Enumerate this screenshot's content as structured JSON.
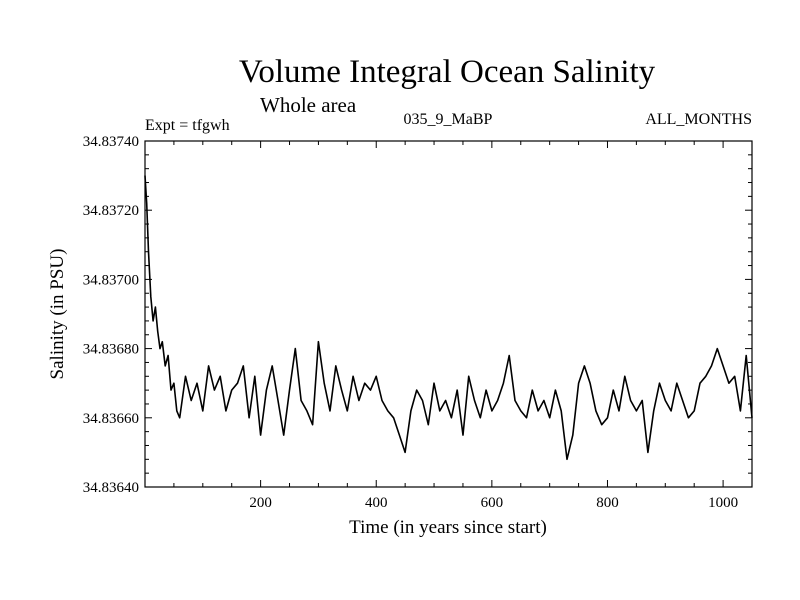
{
  "chart_data": {
    "type": "line",
    "title": "Volume Integral Ocean Salinity",
    "subtitle": "Whole area",
    "experiment": "Expt = tfgwh",
    "run_label": "035_9_MaBP",
    "period_label": "ALL_MONTHS",
    "xlabel": "Time (in years since start)",
    "ylabel": "Salinity (in PSU)",
    "xlim": [
      0,
      1050
    ],
    "ylim": [
      34.8364,
      34.8374
    ],
    "x_ticks": [
      200,
      400,
      600,
      800,
      1000
    ],
    "x_tick_labels": [
      "200",
      "400",
      "600",
      "800",
      "1000"
    ],
    "y_ticks": [
      34.8364,
      34.8366,
      34.8368,
      34.837,
      34.8372,
      34.8374
    ],
    "y_tick_labels": [
      "34.83640",
      "34.83660",
      "34.83680",
      "34.83700",
      "34.83720",
      "34.83740"
    ],
    "series": [
      {
        "name": "salinity",
        "color": "#000000",
        "x": [
          0,
          3,
          6,
          10,
          14,
          18,
          22,
          26,
          30,
          35,
          40,
          45,
          50,
          55,
          60,
          70,
          80,
          90,
          100,
          110,
          120,
          130,
          140,
          150,
          160,
          170,
          180,
          190,
          200,
          210,
          220,
          230,
          240,
          250,
          260,
          270,
          280,
          290,
          300,
          310,
          320,
          330,
          340,
          350,
          360,
          370,
          380,
          390,
          400,
          410,
          420,
          430,
          440,
          450,
          460,
          470,
          480,
          490,
          500,
          510,
          520,
          530,
          540,
          550,
          560,
          570,
          580,
          590,
          600,
          610,
          620,
          630,
          640,
          650,
          660,
          670,
          680,
          690,
          700,
          710,
          720,
          730,
          740,
          750,
          760,
          770,
          780,
          790,
          800,
          810,
          820,
          830,
          840,
          850,
          860,
          870,
          880,
          890,
          900,
          910,
          920,
          930,
          940,
          950,
          960,
          970,
          980,
          990,
          1000,
          1010,
          1020,
          1030,
          1040,
          1050
        ],
        "values": [
          34.8373,
          34.83722,
          34.83708,
          34.83695,
          34.83688,
          34.83692,
          34.83685,
          34.8368,
          34.83682,
          34.83675,
          34.83678,
          34.83668,
          34.8367,
          34.83662,
          34.8366,
          34.83672,
          34.83665,
          34.8367,
          34.83662,
          34.83675,
          34.83668,
          34.83672,
          34.83662,
          34.83668,
          34.8367,
          34.83675,
          34.8366,
          34.83672,
          34.83655,
          34.83668,
          34.83675,
          34.83665,
          34.83655,
          34.83668,
          34.8368,
          34.83665,
          34.83662,
          34.83658,
          34.83682,
          34.8367,
          34.83662,
          34.83675,
          34.83668,
          34.83662,
          34.83672,
          34.83665,
          34.8367,
          34.83668,
          34.83672,
          34.83665,
          34.83662,
          34.8366,
          34.83655,
          34.8365,
          34.83662,
          34.83668,
          34.83665,
          34.83658,
          34.8367,
          34.83662,
          34.83665,
          34.8366,
          34.83668,
          34.83655,
          34.83672,
          34.83665,
          34.8366,
          34.83668,
          34.83662,
          34.83665,
          34.8367,
          34.83678,
          34.83665,
          34.83662,
          34.8366,
          34.83668,
          34.83662,
          34.83665,
          34.8366,
          34.83668,
          34.83662,
          34.83648,
          34.83655,
          34.8367,
          34.83675,
          34.8367,
          34.83662,
          34.83658,
          34.8366,
          34.83668,
          34.83662,
          34.83672,
          34.83665,
          34.83662,
          34.83665,
          34.8365,
          34.83662,
          34.8367,
          34.83665,
          34.83662,
          34.8367,
          34.83665,
          34.8366,
          34.83662,
          34.8367,
          34.83672,
          34.83675,
          34.8368,
          34.83675,
          34.8367,
          34.83672,
          34.83662,
          34.83678,
          34.8366
        ]
      }
    ]
  }
}
